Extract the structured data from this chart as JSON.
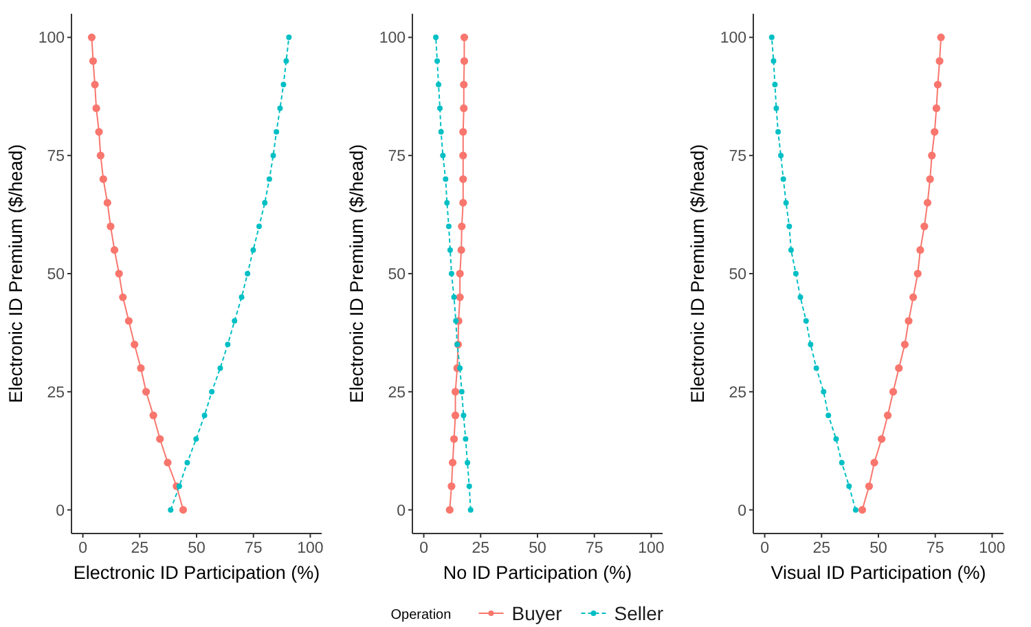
{
  "chart_data": [
    {
      "type": "line",
      "xlabel": "Electronic ID Participation (%)",
      "ylabel": "Electronic ID Premium ($/head)",
      "xlim": [
        -5,
        105
      ],
      "ylim": [
        -5,
        105
      ],
      "xticks": [
        0,
        25,
        50,
        75,
        100
      ],
      "yticks": [
        0,
        25,
        50,
        75,
        100
      ],
      "grid": false,
      "marker": "circle",
      "legend": "bottom",
      "series": [
        {
          "name": "Buyer",
          "color": "#f8766d",
          "line_style": "solid",
          "x": [
            44.1,
            41.2,
            37.3,
            33.9,
            31.0,
            27.8,
            25.5,
            22.7,
            20.2,
            17.6,
            15.9,
            13.9,
            12.2,
            10.8,
            9.0,
            7.8,
            7.1,
            5.9,
            5.3,
            4.5,
            3.9
          ],
          "values": [
            0,
            5,
            10,
            15,
            20,
            25,
            30,
            35,
            40,
            45,
            50,
            55,
            60,
            65,
            70,
            75,
            80,
            85,
            90,
            95,
            100
          ]
        },
        {
          "name": "Seller",
          "color": "#00bfc4",
          "line_style": "dashed",
          "x": [
            38.6,
            42.4,
            45.9,
            49.8,
            53.5,
            56.7,
            60.4,
            63.7,
            66.7,
            69.8,
            72.4,
            74.9,
            77.5,
            80.0,
            82.0,
            83.7,
            85.1,
            86.7,
            88.2,
            89.4,
            90.6
          ],
          "values": [
            0,
            5,
            10,
            15,
            20,
            25,
            30,
            35,
            40,
            45,
            50,
            55,
            60,
            65,
            70,
            75,
            80,
            85,
            90,
            95,
            100
          ]
        }
      ]
    },
    {
      "type": "line",
      "xlabel": "No ID Participation (%)",
      "ylabel": "Electronic ID Premium ($/head)",
      "xlim": [
        -5,
        105
      ],
      "ylim": [
        -5,
        105
      ],
      "xticks": [
        0,
        25,
        50,
        75,
        100
      ],
      "yticks": [
        0,
        25,
        50,
        75,
        100
      ],
      "grid": false,
      "marker": "circle",
      "legend": "bottom",
      "legend_title": "Operation",
      "series": [
        {
          "name": "Buyer",
          "color": "#f8766d",
          "line_style": "solid",
          "x": [
            11.4,
            12.2,
            12.7,
            13.3,
            13.9,
            13.9,
            14.7,
            15.1,
            15.3,
            15.9,
            15.9,
            16.5,
            16.7,
            17.3,
            17.3,
            17.3,
            17.3,
            17.6,
            17.6,
            17.8,
            17.8
          ],
          "values": [
            0,
            5,
            10,
            15,
            20,
            25,
            30,
            35,
            40,
            45,
            50,
            55,
            60,
            65,
            70,
            75,
            80,
            85,
            90,
            95,
            100
          ]
        },
        {
          "name": "Seller",
          "color": "#00bfc4",
          "line_style": "dashed",
          "x": [
            20.6,
            20.0,
            19.2,
            18.4,
            17.5,
            16.7,
            15.9,
            14.7,
            14.1,
            13.3,
            12.2,
            11.6,
            11.0,
            10.2,
            9.6,
            8.4,
            7.6,
            7.1,
            6.5,
            5.9,
            5.3
          ],
          "values": [
            0,
            5,
            10,
            15,
            20,
            25,
            30,
            35,
            40,
            45,
            50,
            55,
            60,
            65,
            70,
            75,
            80,
            85,
            90,
            95,
            100
          ]
        }
      ]
    },
    {
      "type": "line",
      "xlabel": "Visual ID Participation (%)",
      "ylabel": "Electronic ID Premium ($/head)",
      "xlim": [
        -5,
        105
      ],
      "ylim": [
        -5,
        105
      ],
      "xticks": [
        0,
        25,
        50,
        75,
        100
      ],
      "yticks": [
        0,
        25,
        50,
        75,
        100
      ],
      "grid": false,
      "marker": "circle",
      "legend": "bottom",
      "series": [
        {
          "name": "Buyer",
          "color": "#f8766d",
          "line_style": "solid",
          "x": [
            42.9,
            45.9,
            48.2,
            51.4,
            54.1,
            56.5,
            59.0,
            61.6,
            63.3,
            65.3,
            67.3,
            68.4,
            70.2,
            71.6,
            72.7,
            73.5,
            74.7,
            75.5,
            76.1,
            76.9,
            77.5
          ],
          "values": [
            0,
            5,
            10,
            15,
            20,
            25,
            30,
            35,
            40,
            45,
            50,
            55,
            60,
            65,
            70,
            75,
            80,
            85,
            90,
            95,
            100
          ]
        },
        {
          "name": "Seller",
          "color": "#00bfc4",
          "line_style": "dashed",
          "x": [
            40.0,
            37.1,
            33.9,
            31.4,
            28.0,
            25.9,
            22.7,
            20.2,
            18.2,
            15.7,
            13.7,
            11.6,
            10.8,
            9.4,
            8.2,
            7.1,
            5.9,
            5.1,
            4.5,
            3.9,
            3.1
          ],
          "values": [
            0,
            5,
            10,
            15,
            20,
            25,
            30,
            35,
            40,
            45,
            50,
            55,
            60,
            65,
            70,
            75,
            80,
            85,
            90,
            95,
            100
          ]
        }
      ]
    }
  ]
}
